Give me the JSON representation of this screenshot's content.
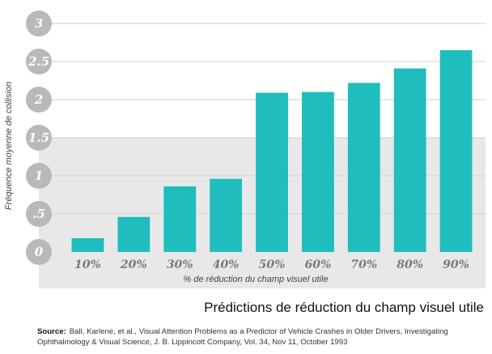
{
  "chart_data": {
    "type": "bar",
    "categories": [
      "10%",
      "20%",
      "30%",
      "40%",
      "50%",
      "60%",
      "70%",
      "80%",
      "90%"
    ],
    "values": [
      0.18,
      0.46,
      0.86,
      0.96,
      2.09,
      2.1,
      2.22,
      2.41,
      2.65
    ],
    "title": "Prédictions de réduction du champ visuel utile",
    "xlabel": "% de réduction du champ visuel utile",
    "ylabel": "Fréquence moyenne de collision",
    "yticks": [
      {
        "value": 0,
        "label": "0"
      },
      {
        "value": 0.5,
        "label": ".5"
      },
      {
        "value": 1,
        "label": "1"
      },
      {
        "value": 1.5,
        "label": "1.5"
      },
      {
        "value": 2,
        "label": "2"
      },
      {
        "value": 2.5,
        "label": "2.5"
      },
      {
        "value": 3,
        "label": "3"
      }
    ],
    "ylim": [
      0,
      3
    ],
    "grid": true,
    "colors": {
      "bar": "#1fbdbd",
      "tick_circle": "#b9b9b9",
      "tick_text": "#ffffff",
      "gridline": "#cfcfcf",
      "shaded_band": "#e8e8e8",
      "category_text": "#7a7a7a"
    }
  },
  "source": {
    "prefix": "Source:",
    "text": "Ball, Karlene, et al., Visual Attention Problems as a Predictor of Vehicle Crashes in Older Drivers, Investigating Ophthalmology & Visual Science, J. B. Lippincott Company, Vol. 34, Nov 11, October 1993"
  }
}
